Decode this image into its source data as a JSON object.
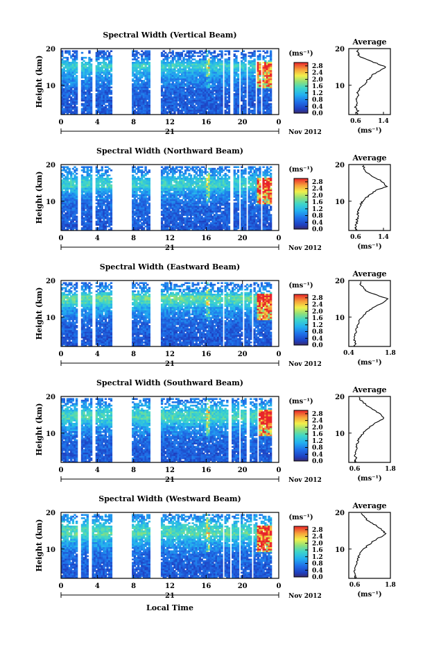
{
  "chart_data": [
    {
      "type": "heatmap",
      "title": "Spectral Width (Vertical Beam)",
      "ylabel": "Height (km)",
      "x_ticks": [
        "0",
        "4",
        "8",
        "12",
        "16",
        "20",
        "0"
      ],
      "date_label": "21",
      "month_label": "Nov 2012",
      "xlim": [
        0,
        24
      ],
      "ylim": [
        2,
        20
      ],
      "y_ticks": [
        "10",
        "20"
      ],
      "colorbar": {
        "unit": "(ms⁻¹)",
        "ticks": [
          "0.0",
          "0.4",
          "0.8",
          "1.2",
          "1.6",
          "2.0",
          "2.4",
          "2.8"
        ],
        "range": [
          0.0,
          3.0
        ]
      },
      "data_gaps_hours": [
        [
          1.6,
          2.0
        ],
        [
          3.4,
          3.8
        ],
        [
          5.5,
          7.8
        ],
        [
          9.6,
          10.8
        ],
        [
          17.6,
          17.9
        ],
        [
          18.5,
          18.8
        ],
        [
          19.4,
          19.7
        ],
        [
          20.2,
          20.5
        ],
        [
          21.2,
          21.4
        ],
        [
          21.9,
          22.1
        ],
        [
          23.0,
          24.0
        ]
      ],
      "average_profile": {
        "title": "Average",
        "xlabel": "(ms⁻¹)",
        "xlim": [
          0.4,
          1.6
        ],
        "x_ticks": [
          "0.6",
          "1.4"
        ],
        "y_ticks": [
          "10",
          "20"
        ],
        "height_km": [
          2,
          3,
          4,
          5,
          6,
          7,
          8,
          9,
          10,
          11,
          12,
          13,
          14,
          15,
          16,
          17,
          18,
          19,
          20
        ],
        "width_ms": [
          0.62,
          0.66,
          0.6,
          0.64,
          0.62,
          0.68,
          0.66,
          0.72,
          0.85,
          0.9,
          1.02,
          1.1,
          1.3,
          1.46,
          1.2,
          0.9,
          0.7,
          0.65,
          0.68
        ]
      }
    },
    {
      "type": "heatmap",
      "title": "Spectral Width (Northward Beam)",
      "ylabel": "Height (km)",
      "x_ticks": [
        "0",
        "4",
        "8",
        "12",
        "16",
        "20",
        "0"
      ],
      "date_label": "21",
      "month_label": "Nov 2012",
      "xlim": [
        0,
        24
      ],
      "ylim": [
        2,
        20
      ],
      "y_ticks": [
        "10",
        "20"
      ],
      "colorbar": {
        "unit": "(ms⁻¹)",
        "ticks": [
          "0.0",
          "0.4",
          "0.8",
          "1.2",
          "1.6",
          "2.0",
          "2.4",
          "2.8"
        ],
        "range": [
          0.0,
          3.0
        ]
      },
      "data_gaps_hours": [
        [
          1.6,
          2.0
        ],
        [
          3.4,
          3.8
        ],
        [
          5.5,
          7.8
        ],
        [
          9.6,
          10.8
        ],
        [
          18.5,
          18.8
        ],
        [
          19.4,
          19.7
        ],
        [
          20.2,
          20.5
        ],
        [
          21.8,
          22.0
        ],
        [
          23.0,
          24.0
        ]
      ],
      "average_profile": {
        "title": "Average",
        "xlabel": "(ms⁻¹)",
        "xlim": [
          0.4,
          1.6
        ],
        "x_ticks": [
          "0.6",
          "1.4"
        ],
        "y_ticks": [
          "10",
          "20"
        ],
        "height_km": [
          2,
          3,
          4,
          5,
          6,
          7,
          8,
          9,
          10,
          11,
          12,
          13,
          14,
          15,
          16,
          17,
          18,
          19,
          20
        ],
        "width_ms": [
          0.62,
          0.6,
          0.62,
          0.64,
          0.66,
          0.66,
          0.7,
          0.74,
          0.8,
          0.9,
          1.05,
          1.2,
          1.5,
          1.42,
          1.25,
          1.05,
          0.9,
          0.85,
          0.8
        ]
      }
    },
    {
      "type": "heatmap",
      "title": "Spectral Width (Eastward Beam)",
      "ylabel": "Height (km)",
      "x_ticks": [
        "0",
        "4",
        "8",
        "12",
        "16",
        "20",
        "0"
      ],
      "date_label": "21",
      "month_label": "Nov 2012",
      "xlim": [
        0,
        24
      ],
      "ylim": [
        2,
        20
      ],
      "y_ticks": [
        "10",
        "20"
      ],
      "colorbar": {
        "unit": "(ms⁻¹)",
        "ticks": [
          "0.0",
          "0.4",
          "0.8",
          "1.2",
          "1.6",
          "2.0",
          "2.4",
          "2.8"
        ],
        "range": [
          0.0,
          3.0
        ]
      },
      "data_gaps_hours": [
        [
          1.6,
          2.0
        ],
        [
          3.4,
          3.8
        ],
        [
          5.5,
          7.8
        ],
        [
          9.6,
          10.8
        ],
        [
          17.6,
          17.8
        ],
        [
          19.8,
          20.0
        ],
        [
          20.8,
          21.0
        ],
        [
          23.0,
          24.0
        ]
      ],
      "average_profile": {
        "title": "Average",
        "xlabel": "(ms⁻¹)",
        "xlim": [
          0.4,
          1.8
        ],
        "x_ticks": [
          "0.4",
          "1.8"
        ],
        "y_ticks": [
          "10",
          "20"
        ],
        "height_km": [
          2,
          3,
          4,
          5,
          6,
          7,
          8,
          9,
          10,
          11,
          12,
          13,
          14,
          15,
          16,
          17,
          18,
          19,
          20
        ],
        "width_ms": [
          0.6,
          0.62,
          0.58,
          0.62,
          0.64,
          0.66,
          0.7,
          0.76,
          0.85,
          0.95,
          1.1,
          1.3,
          1.55,
          1.7,
          1.35,
          1.0,
          0.9,
          0.8,
          0.85
        ]
      }
    },
    {
      "type": "heatmap",
      "title": "Spectral Width (Southward Beam)",
      "ylabel": "Height (km)",
      "x_ticks": [
        "0",
        "4",
        "8",
        "12",
        "16",
        "20",
        "0"
      ],
      "date_label": "21",
      "month_label": "Nov 2012",
      "xlim": [
        0,
        24
      ],
      "ylim": [
        2,
        20
      ],
      "y_ticks": [
        "10",
        "20"
      ],
      "colorbar": {
        "unit": "(ms⁻¹)",
        "ticks": [
          "0.0",
          "0.4",
          "0.8",
          "1.2",
          "1.6",
          "2.0",
          "2.4",
          "2.8"
        ],
        "range": [
          0.0,
          3.0
        ]
      },
      "data_gaps_hours": [
        [
          1.6,
          2.0
        ],
        [
          3.4,
          3.8
        ],
        [
          5.5,
          7.8
        ],
        [
          9.6,
          10.8
        ],
        [
          18.3,
          18.6
        ],
        [
          19.4,
          19.7
        ],
        [
          20.3,
          20.6
        ],
        [
          21.5,
          21.7
        ],
        [
          23.0,
          24.0
        ]
      ],
      "average_profile": {
        "title": "Average",
        "xlabel": "(ms⁻¹)",
        "xlim": [
          0.4,
          1.8
        ],
        "x_ticks": [
          "0.6",
          "1.8"
        ],
        "y_ticks": [
          "10",
          "20"
        ],
        "height_km": [
          2,
          3,
          4,
          5,
          6,
          7,
          8,
          9,
          10,
          11,
          12,
          13,
          14,
          15,
          16,
          17,
          18,
          19,
          20
        ],
        "width_ms": [
          0.62,
          0.66,
          0.6,
          0.64,
          0.66,
          0.68,
          0.72,
          0.78,
          0.88,
          1.0,
          1.15,
          1.35,
          1.6,
          1.5,
          1.3,
          1.1,
          0.95,
          0.8,
          0.7
        ]
      }
    },
    {
      "type": "heatmap",
      "title": "Spectral Width (Westward Beam)",
      "ylabel": "Height (km)",
      "x_ticks": [
        "0",
        "4",
        "8",
        "12",
        "16",
        "20",
        "0"
      ],
      "date_label": "21",
      "month_label": "Nov 2012",
      "xlim": [
        0,
        24
      ],
      "ylim": [
        2,
        20
      ],
      "y_ticks": [
        "10",
        "20"
      ],
      "colorbar": {
        "unit": "(ms⁻¹)",
        "ticks": [
          "0.0",
          "0.4",
          "0.8",
          "1.2",
          "1.6",
          "2.0",
          "2.4",
          "2.8"
        ],
        "range": [
          0.0,
          3.0
        ]
      },
      "data_gaps_hours": [
        [
          1.6,
          2.0
        ],
        [
          3.0,
          3.4
        ],
        [
          5.5,
          7.8
        ],
        [
          9.6,
          10.8
        ],
        [
          17.6,
          17.8
        ],
        [
          18.5,
          18.7
        ],
        [
          19.5,
          19.7
        ],
        [
          20.8,
          21.0
        ],
        [
          23.0,
          24.0
        ]
      ],
      "average_profile": {
        "title": "Average",
        "xlabel": "(ms⁻¹)",
        "xlim": [
          0.4,
          1.8
        ],
        "x_ticks": [
          "0.6",
          "1.8"
        ],
        "y_ticks": [
          "10",
          "20"
        ],
        "height_km": [
          2,
          3,
          4,
          5,
          6,
          7,
          8,
          9,
          10,
          11,
          12,
          13,
          14,
          15,
          16,
          17,
          18,
          19,
          20
        ],
        "width_ms": [
          0.62,
          0.64,
          0.6,
          0.62,
          0.66,
          0.7,
          0.74,
          0.8,
          0.9,
          1.05,
          1.2,
          1.4,
          1.65,
          1.55,
          1.4,
          1.2,
          1.0,
          0.9,
          0.8
        ]
      }
    }
  ],
  "footer": {
    "xlabel": "Local Time"
  }
}
